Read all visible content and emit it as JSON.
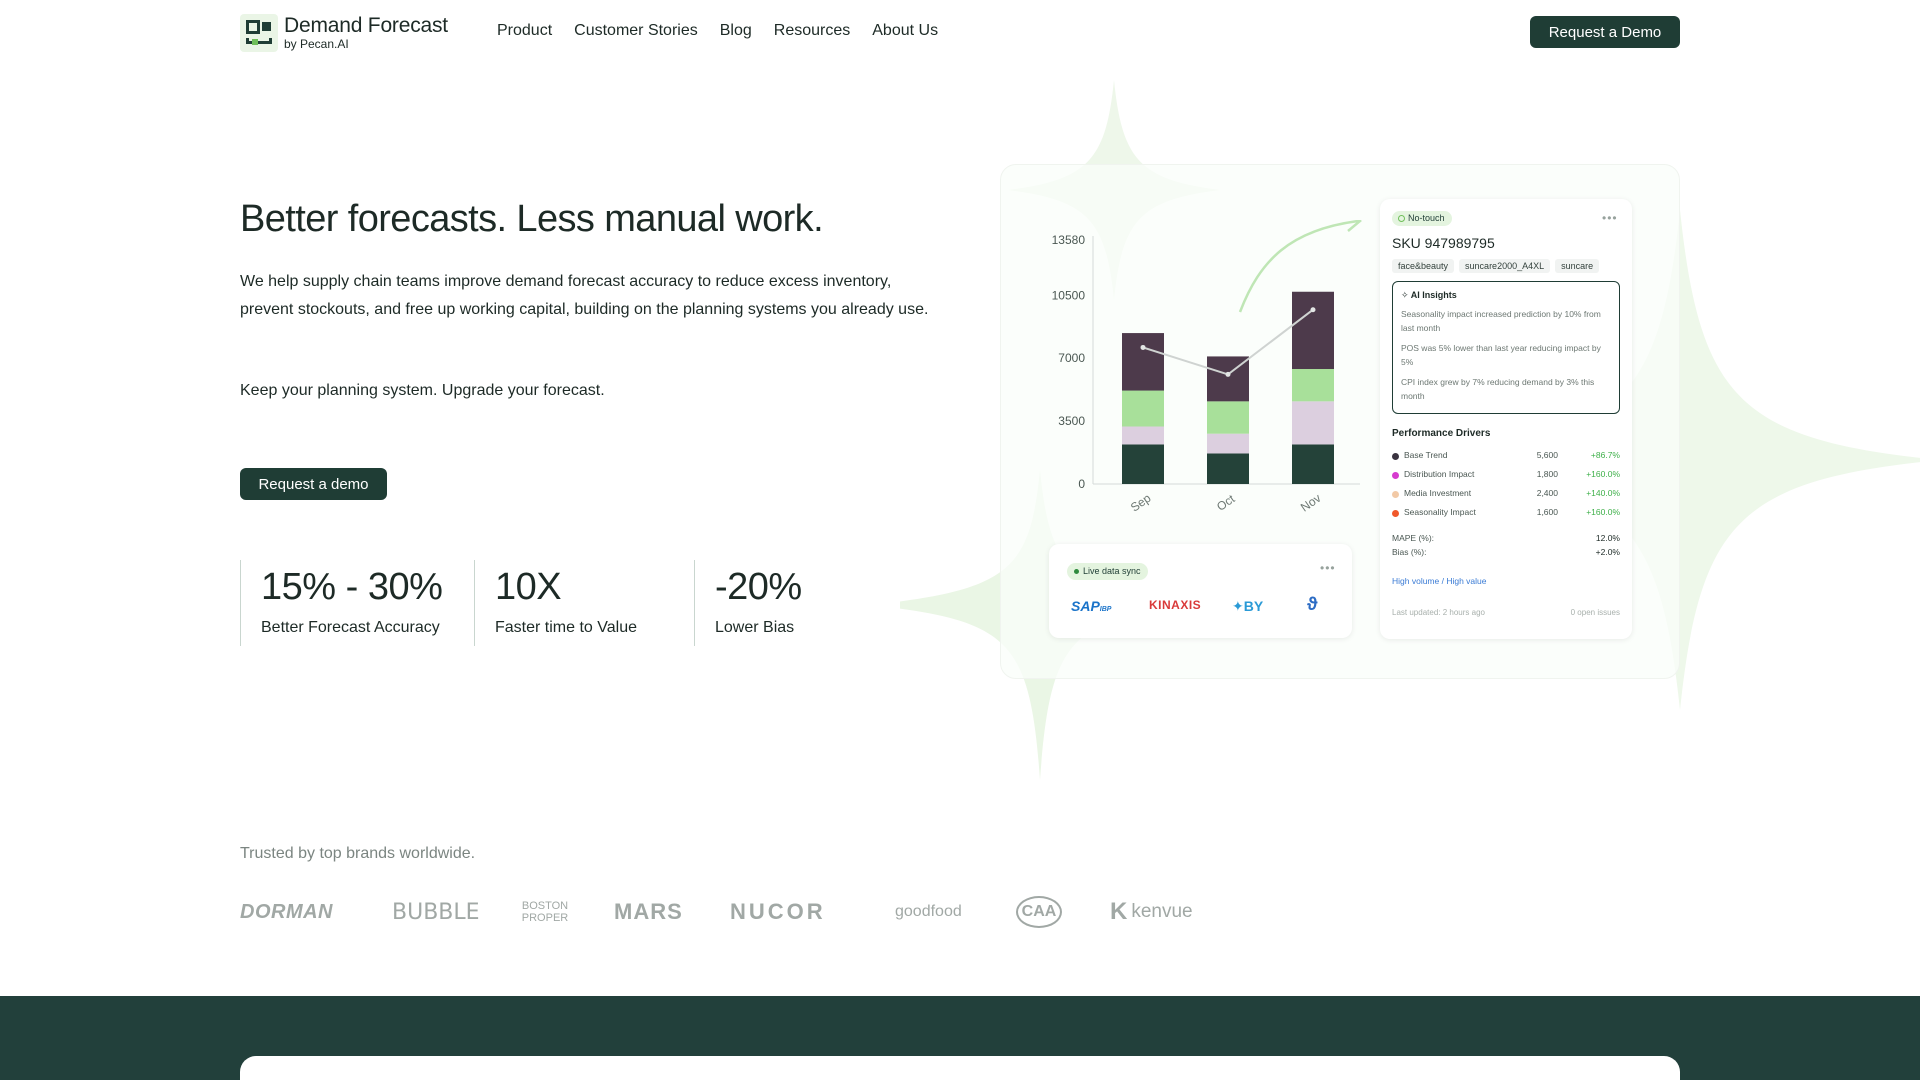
{
  "brand": {
    "name": "Demand Forecast",
    "sub": "by Pecan.AI"
  },
  "nav": {
    "links": [
      "Product",
      "Customer Stories",
      "Blog",
      "Resources",
      "About Us"
    ],
    "cta": "Request a Demo"
  },
  "hero": {
    "title": "Better forecasts. Less manual work.",
    "description": "We help supply chain teams improve demand forecast accuracy to reduce excess inventory, prevent stockouts, and free up working capital, building on the planning systems you already use.",
    "tagline": "Keep your planning system. Upgrade your forecast.",
    "cta": "Request a demo"
  },
  "stats": [
    {
      "value": "15% - 30%",
      "label": "Better Forecast Accuracy"
    },
    {
      "value": "10X",
      "label": "Faster time to Value"
    },
    {
      "value": "-20%",
      "label": "Lower Bias"
    }
  ],
  "chart_data": {
    "type": "bar",
    "stacked": true,
    "categories": [
      "Sep",
      "Oct",
      "Nov"
    ],
    "yticks": [
      "0",
      "3500",
      "7000",
      "10500",
      "13580"
    ],
    "ylim": [
      0,
      13580
    ],
    "grid": false,
    "series": [
      {
        "values": [
          2200,
          1700,
          2200
        ],
        "color": "#244239"
      },
      {
        "values": [
          1000,
          1100,
          2400
        ],
        "color": "#dccfdf"
      },
      {
        "values": [
          2000,
          1800,
          1800
        ],
        "color": "#a8e09a"
      },
      {
        "values": [
          3200,
          2500,
          4300
        ],
        "color": "#4d3a4b"
      }
    ],
    "line": {
      "values": [
        7600,
        6100,
        9700
      ],
      "color": "#cfd3d1"
    }
  },
  "sku_card": {
    "badge": "No-touch",
    "sku": "SKU 947989795",
    "tags": [
      "face&beauty",
      "suncare2000_A4XL",
      "suncare"
    ],
    "insights_title": "AI Insights",
    "insights": [
      "Seasonality impact increased prediction by 10% from last month",
      "POS was 5% lower than last year reducing impact by 5%",
      "CPI index grew by 7% reducing demand by 3% this month"
    ],
    "drivers_title": "Performance Drivers",
    "drivers": [
      {
        "name": "Base Trend",
        "value": "5,600",
        "change": "+86.7%",
        "color": "#3a3340"
      },
      {
        "name": "Distribution Impact",
        "value": "1,800",
        "change": "+160.0%",
        "color": "#d63bcf"
      },
      {
        "name": "Media Investment",
        "value": "2,400",
        "change": "+140.0%",
        "color": "#f2c9a6"
      },
      {
        "name": "Seasonality Impact",
        "value": "1,600",
        "change": "+160.0%",
        "color": "#f0582b"
      }
    ],
    "mape_label": "MAPE (%):",
    "mape_value": "12.0%",
    "bias_label": "Bias (%):",
    "bias_value": "+2.0%",
    "link": "High volume / High value",
    "updated": "Last updated: 2 hours ago",
    "issues": "0 open issues"
  },
  "sync_card": {
    "badge": "Live data sync"
  },
  "trusted": {
    "title": "Trusted by top brands worldwide.",
    "brands": [
      "DORMAN",
      "BUBBLE",
      "BOSTON PROPER",
      "MARS",
      "NUCOR",
      "goodfood",
      "CAA",
      "kenvue"
    ]
  }
}
